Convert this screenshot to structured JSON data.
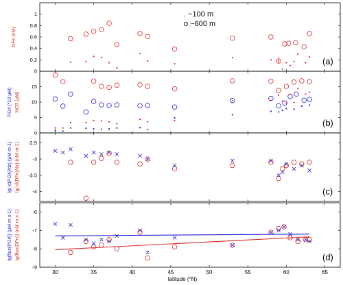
{
  "xaxis": {
    "label": "latitude (°N)",
    "ticks": [
      30,
      35,
      40,
      45,
      50,
      55,
      60,
      65
    ],
    "range": [
      28,
      67
    ]
  },
  "chart_data": [
    {
      "type": "scatter",
      "panel_letter": "(a)",
      "ylabel_lines": [
        {
          "text": "DFe (nM)",
          "color": "#d62728"
        }
      ],
      "ylim": [
        0,
        1.2
      ],
      "yticks": [
        0,
        0.2,
        0.4,
        0.6,
        0.8,
        1
      ],
      "annotations": [
        ". ~100 m",
        "o ~600 m"
      ],
      "series": [
        {
          "marker": "circle",
          "color": "#d62728",
          "points": [
            [
              32,
              0.57
            ],
            [
              34,
              0.65
            ],
            [
              35,
              0.7
            ],
            [
              36,
              0.73
            ],
            [
              37,
              0.84
            ],
            [
              38,
              0.47
            ],
            [
              41,
              0.66
            ],
            [
              42,
              0.61
            ],
            [
              45.5,
              0.39
            ],
            [
              53,
              0.58
            ],
            [
              58,
              0.6
            ],
            [
              59,
              0.18
            ],
            [
              59.8,
              0.48
            ],
            [
              60.3,
              0.49
            ],
            [
              61.2,
              0.5
            ],
            [
              62.3,
              0.43
            ],
            [
              63,
              0.66
            ]
          ]
        },
        {
          "marker": "dot",
          "color": "#d62728",
          "points": [
            [
              32,
              0.16
            ],
            [
              34,
              0.17
            ],
            [
              35,
              0.26
            ],
            [
              36,
              0.24
            ],
            [
              37,
              0.15
            ],
            [
              38,
              0.06
            ],
            [
              41,
              0.31
            ],
            [
              42,
              0.18
            ],
            [
              45.5,
              0.13
            ],
            [
              53,
              0.24
            ],
            [
              58,
              0.2
            ],
            [
              59,
              0.18
            ],
            [
              59.5,
              0.04
            ],
            [
              60,
              0.15
            ],
            [
              60.5,
              0.1
            ],
            [
              61,
              0.17
            ],
            [
              61.5,
              0.3
            ],
            [
              62.5,
              0.15
            ],
            [
              63,
              0.25
            ]
          ]
        }
      ]
    },
    {
      "type": "scatter",
      "panel_letter": "(b)",
      "ylabel_lines": [
        {
          "text": "PO4 (*10 µM)",
          "color": "#1f1fd6"
        },
        {
          "text": "NO3 (µM)",
          "color": "#d62728"
        }
      ],
      "ylim": [
        0,
        20
      ],
      "yticks": [
        0,
        5,
        10,
        15
      ],
      "series": [
        {
          "marker": "circle",
          "color": "#d62728",
          "points": [
            [
              30,
              18.8
            ],
            [
              31,
              16.6
            ],
            [
              35,
              16.8
            ],
            [
              36,
              15.1
            ],
            [
              37,
              14.8
            ],
            [
              38,
              15.5
            ],
            [
              41,
              15.6
            ],
            [
              42,
              15.1
            ],
            [
              45.5,
              14.3
            ],
            [
              53,
              16.9
            ],
            [
              58,
              16.8
            ],
            [
              59,
              13.8
            ],
            [
              60,
              15.1
            ],
            [
              61,
              16.5
            ],
            [
              62,
              16.9
            ],
            [
              63,
              16.6
            ]
          ]
        },
        {
          "marker": "circle",
          "color": "#1f1fd6",
          "points": [
            [
              30,
              11
            ],
            [
              31,
              8.7
            ],
            [
              32,
              12.6
            ],
            [
              34,
              6.8
            ],
            [
              35,
              10.2
            ],
            [
              36,
              9.1
            ],
            [
              37,
              8.9
            ],
            [
              38,
              9.1
            ],
            [
              41,
              8.8
            ],
            [
              42,
              8.9
            ],
            [
              45.5,
              8.4
            ],
            [
              53,
              10.5
            ],
            [
              58,
              11.2
            ],
            [
              59,
              8.8
            ],
            [
              59.8,
              9.7
            ],
            [
              60.5,
              11.8
            ],
            [
              61.3,
              12.6
            ],
            [
              62.3,
              10.6
            ],
            [
              63,
              10.9
            ]
          ]
        },
        {
          "marker": "dot",
          "color": "#d62728",
          "points": [
            [
              30,
              1.6
            ],
            [
              31,
              1.6
            ],
            [
              32,
              3.3
            ],
            [
              34,
              3.4
            ],
            [
              35,
              4.0
            ],
            [
              36,
              3.9
            ],
            [
              37,
              3.6
            ],
            [
              38,
              3.0
            ],
            [
              41,
              4.4
            ],
            [
              42,
              3.6
            ],
            [
              45.5,
              4.0
            ],
            [
              53,
              10.4
            ],
            [
              58,
              10.5
            ],
            [
              59,
              12.3
            ],
            [
              59.5,
              10.3
            ],
            [
              60,
              9.7
            ],
            [
              60.5,
              12.5
            ],
            [
              61,
              9.9
            ],
            [
              61.5,
              14.4
            ],
            [
              62.5,
              12.6
            ],
            [
              63,
              13.2
            ]
          ]
        },
        {
          "marker": "dot",
          "color": "#1f1fd6",
          "points": [
            [
              30,
              0.8
            ],
            [
              31,
              0.6
            ],
            [
              32,
              1.6
            ],
            [
              34,
              1.5
            ],
            [
              35,
              1.3
            ],
            [
              36,
              1.2
            ],
            [
              37,
              1.3
            ],
            [
              38,
              1.6
            ],
            [
              41,
              1.7
            ],
            [
              42,
              1.1
            ],
            [
              45.5,
              4.9
            ],
            [
              53,
              5.9
            ],
            [
              58,
              7.0
            ],
            [
              59,
              6.8
            ],
            [
              59.5,
              7.3
            ],
            [
              60,
              7.9
            ],
            [
              61,
              7.7
            ],
            [
              62,
              8.7
            ],
            [
              63,
              9.0
            ]
          ]
        }
      ]
    },
    {
      "type": "scatter",
      "panel_letter": "(c)",
      "ylabel_lines": [
        {
          "text": "lg(-d(PO4)/dz) (µM m-1)",
          "color": "#1f1fd6"
        },
        {
          "text": "lg(-d(DFe)/dz) (nM m-1)",
          "color": "#d62728"
        }
      ],
      "ylim": [
        -4.3,
        -2.2
      ],
      "yticks": [
        -4,
        -3.5,
        -3,
        -2.5
      ],
      "series": [
        {
          "marker": "circle",
          "color": "#d62728",
          "points": [
            [
              32,
              -3.1
            ],
            [
              34,
              -4.2
            ],
            [
              35,
              -3.1
            ],
            [
              36,
              -2.98
            ],
            [
              37,
              -2.83
            ],
            [
              38,
              -3.1
            ],
            [
              41,
              -3.15
            ],
            [
              42,
              -3.0
            ],
            [
              45.5,
              -3.3
            ],
            [
              53,
              -3.2
            ],
            [
              58,
              -3.1
            ],
            [
              59,
              -3.6
            ],
            [
              59.5,
              -3.3
            ],
            [
              60,
              -3.2
            ],
            [
              61,
              -3.1
            ],
            [
              62,
              -3.15
            ],
            [
              63,
              -3.1
            ]
          ]
        },
        {
          "marker": "x",
          "color": "#1f1fd6",
          "points": [
            [
              30,
              -2.75
            ],
            [
              31,
              -2.8
            ],
            [
              32,
              -2.7
            ],
            [
              34,
              -2.9
            ],
            [
              35,
              -2.8
            ],
            [
              36,
              -2.85
            ],
            [
              37,
              -2.8
            ],
            [
              38,
              -2.85
            ],
            [
              41,
              -2.9
            ],
            [
              42,
              -3.0
            ],
            [
              45.5,
              -3.2
            ],
            [
              53,
              -3.05
            ],
            [
              58,
              -3.05
            ],
            [
              59,
              -3.5
            ],
            [
              59.5,
              -3.4
            ],
            [
              60,
              -3.15
            ],
            [
              61,
              -3.3
            ],
            [
              62,
              -3.2
            ],
            [
              63,
              -3.35
            ]
          ]
        }
      ]
    },
    {
      "type": "scatter",
      "panel_letter": "(d)",
      "ylabel_lines": [
        {
          "text": "lg(flux(PO4)) (µM m s-1)",
          "color": "#1f1fd6"
        },
        {
          "text": "lg(flux(DFe)) (nM m s-1)",
          "color": "#d62728"
        }
      ],
      "ylim": [
        -9,
        -5.5
      ],
      "yticks": [
        -9,
        -8,
        -7,
        -6
      ],
      "series": [
        {
          "marker": "circle",
          "color": "#d62728",
          "points": [
            [
              32,
              -8.2
            ],
            [
              34,
              -7.6
            ],
            [
              35,
              -7.9
            ],
            [
              36,
              -7.8
            ],
            [
              37,
              -7.5
            ],
            [
              38,
              -8.0
            ],
            [
              41,
              -7.1
            ],
            [
              42,
              -8.5
            ],
            [
              45.5,
              -7.9
            ],
            [
              53,
              -7.8
            ],
            [
              58,
              -7.1
            ],
            [
              59,
              -6.9
            ],
            [
              59.7,
              -6.8
            ],
            [
              60.5,
              -7.4
            ],
            [
              61.5,
              -7.6
            ],
            [
              62.5,
              -7.5
            ],
            [
              63,
              -7.5
            ]
          ]
        },
        {
          "marker": "x",
          "color": "#1f1fd6",
          "points": [
            [
              30,
              -6.65
            ],
            [
              31,
              -7.4
            ],
            [
              32,
              -6.7
            ],
            [
              34,
              -7.5
            ],
            [
              35,
              -7.7
            ],
            [
              36,
              -7.5
            ],
            [
              37,
              -7.6
            ],
            [
              38,
              -7.3
            ],
            [
              41,
              -7.0
            ],
            [
              42,
              -8.2
            ],
            [
              45.5,
              -7.4
            ],
            [
              53,
              -7.8
            ],
            [
              58,
              -7.1
            ],
            [
              59,
              -7.0
            ],
            [
              59.7,
              -6.8
            ],
            [
              60.5,
              -7.2
            ],
            [
              61.5,
              -7.5
            ],
            [
              62.5,
              -7.5
            ],
            [
              63,
              -7.6
            ]
          ]
        },
        {
          "marker": "line",
          "color": "#1f1fd6",
          "points": [
            [
              30,
              -7.3
            ],
            [
              63,
              -7.2
            ]
          ]
        },
        {
          "marker": "line",
          "color": "#d62728",
          "points": [
            [
              30,
              -8.05
            ],
            [
              63,
              -7.35
            ]
          ]
        }
      ]
    }
  ]
}
